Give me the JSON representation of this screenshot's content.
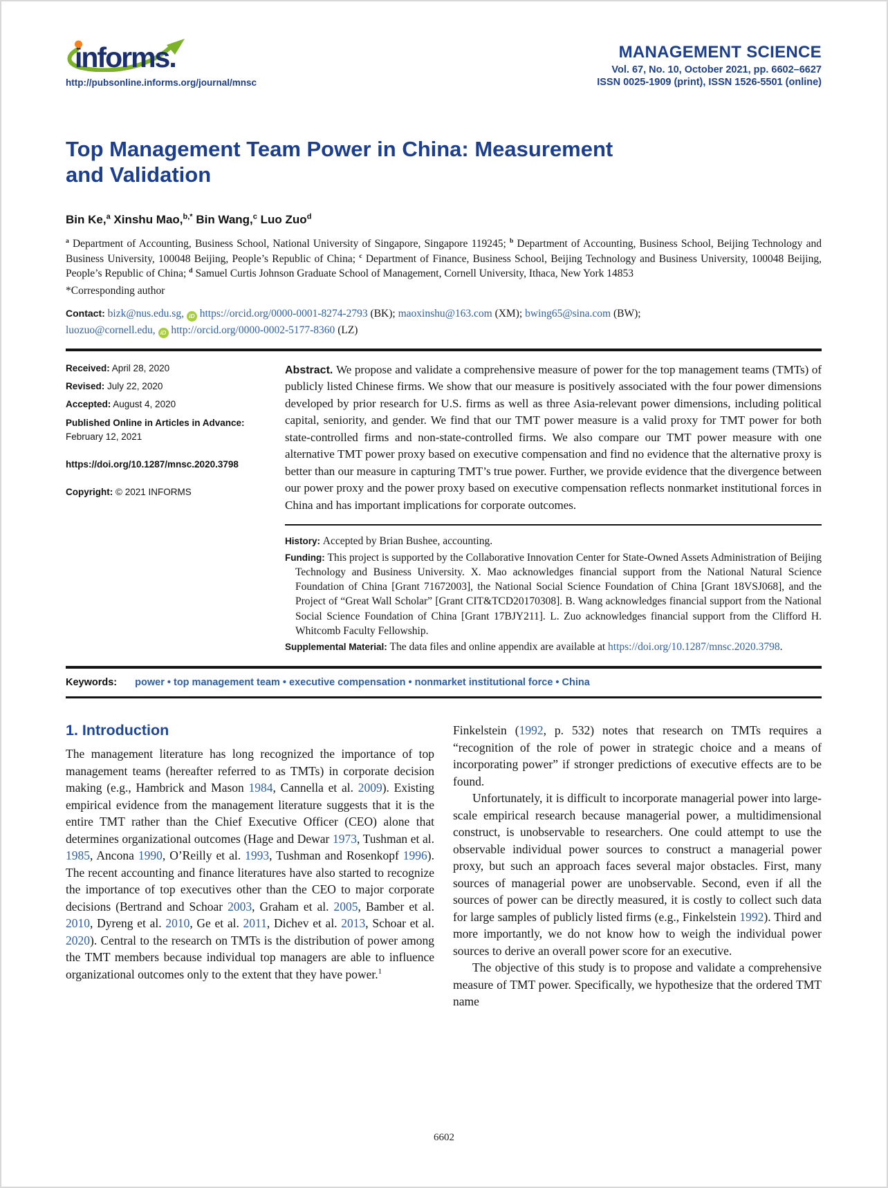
{
  "page": {
    "number": "6602"
  },
  "colors": {
    "navy": "#1c3e8e",
    "link_blue": "#2d5fa8",
    "orcid_green": "#a6ce39",
    "logo_green": "#7cb228",
    "logo_orange": "#f5821f",
    "rule_black": "#141414"
  },
  "header": {
    "logo_text": "informs.",
    "logo_url": "http://pubsonline.informs.org/journal/mnsc",
    "journal": "MANAGEMENT SCIENCE",
    "volume_line": "Vol. 67, No. 10, October 2021, pp. 6602–6627",
    "issn_line": "ISSN 0025-1909 (print), ISSN 1526-5501 (online)"
  },
  "article": {
    "title_line1": "Top Management Team Power in China: Measurement",
    "title_line2": "and Validation",
    "author_segments": [
      {
        "t": "Bin Ke,"
      },
      {
        "t": "a",
        "s": "sup"
      },
      {
        "t": " Xinshu Mao,"
      },
      {
        "t": "b,*",
        "s": "sup"
      },
      {
        "t": " Bin Wang,"
      },
      {
        "t": "c",
        "s": "sup"
      },
      {
        "t": " Luo Zuo"
      },
      {
        "t": "d",
        "s": "sup"
      }
    ],
    "affiliation_segments": [
      {
        "t": "a",
        "s": "sup"
      },
      {
        "t": " Department of Accounting, Business School, National University of Singapore, Singapore 119245; "
      },
      {
        "t": "b",
        "s": "sup"
      },
      {
        "t": " Department of Accounting, Business School, Beijing Technology and Business University, 100048 Beijing, People’s Republic of China; "
      },
      {
        "t": "c",
        "s": "sup"
      },
      {
        "t": " Department of Finance, Business School, Beijing Technology and Business University, 100048 Beijing, People’s Republic of China; "
      },
      {
        "t": "d",
        "s": "sup"
      },
      {
        "t": " Samuel Curtis Johnson Graduate School of Management, Cornell University, Ithaca, New York 14853"
      }
    ],
    "corresponding": "*Corresponding author",
    "contact_segments": [
      {
        "t": "Contact: ",
        "s": "label"
      },
      {
        "t": "bizk@nus.edu.sg,",
        "s": "link",
        "n": "email-link-bk"
      },
      {
        "t": " "
      },
      {
        "t": "iD",
        "s": "orcid"
      },
      {
        "t": " "
      },
      {
        "t": "https://orcid.org/0000-0001-8274-2793",
        "s": "link",
        "n": "orcid-link-bk"
      },
      {
        "t": " (BK); "
      },
      {
        "t": "maoxinshu@163.com",
        "s": "link",
        "n": "email-link-xm"
      },
      {
        "t": " (XM); "
      },
      {
        "t": "bwing65@sina.com",
        "s": "link",
        "n": "email-link-bw"
      },
      {
        "t": " (BW);"
      },
      {
        "t": "",
        "s": "br"
      },
      {
        "t": "luozuo@cornell.edu,",
        "s": "link",
        "n": "email-link-lz"
      },
      {
        "t": " "
      },
      {
        "t": "iD",
        "s": "orcid"
      },
      {
        "t": " "
      },
      {
        "t": "http://orcid.org/0000-0002-5177-8360",
        "s": "link",
        "n": "orcid-link-lz"
      },
      {
        "t": " (LZ)"
      }
    ]
  },
  "meta": {
    "received_label": "Received:",
    "received": " April 28, 2020",
    "revised_label": "Revised:",
    "revised": " July 22, 2020",
    "accepted_label": "Accepted:",
    "accepted": " August 4, 2020",
    "published_label": "Published Online in Articles in Advance:",
    "published": "February 12, 2021",
    "doi": "https://doi.org/10.1287/mnsc.2020.3798",
    "copyright_label": "Copyright:",
    "copyright": " © 2021 INFORMS"
  },
  "abstract": {
    "segments": [
      {
        "t": "Abstract. ",
        "s": "label"
      },
      {
        "t": "We propose and validate a comprehensive measure of power for the top management teams (TMTs) of publicly listed Chinese firms. We show that our measure is positively associated with the four power dimensions developed by prior research for U.S. firms as well as three Asia-relevant power dimensions, including political capital, seniority, and gender. We find that our TMT power measure is a valid proxy for TMT power for both state-controlled firms and non-state-controlled firms. We also compare our TMT power measure with one alternative TMT power proxy based on executive compensation and find no evidence that the alternative proxy is better than our measure in capturing TMT’s true power. Further, we provide evidence that the divergence between our power proxy and the power proxy based on executive compensation reflects nonmarket institutional forces in China and has important implications for corporate outcomes."
      }
    ]
  },
  "notes": {
    "history": [
      {
        "t": "History: ",
        "s": "label"
      },
      {
        "t": "Accepted by Brian Bushee, accounting."
      }
    ],
    "funding": [
      {
        "t": "Funding: ",
        "s": "label"
      },
      {
        "t": "This project is supported by the Collaborative Innovation Center for State-Owned Assets Administration of Beijing Technology and Business University. X. Mao acknowledges financial support from the National Natural Science Foundation of China [Grant 71672003], the National Social Science Foundation of China [Grant 18VSJ068], and the Project of “Great Wall Scholar” [Grant CIT&TCD20170308]. B. Wang acknowledges financial support from the National Social Science Foundation of China [Grant 17BJY211]. L. Zuo acknowledges financial support from the Clifford H. Whitcomb Faculty Fellowship."
      }
    ],
    "supplemental": [
      {
        "t": "Supplemental Material: ",
        "s": "label"
      },
      {
        "t": "The data files and online appendix are available at "
      },
      {
        "t": "https://doi.org/10.1287/mnsc.2020.3798",
        "s": "link",
        "n": "supplemental-doi-link"
      },
      {
        "t": "."
      }
    ]
  },
  "keywords": {
    "label": "Keywords:",
    "items": [
      "power",
      "top management team",
      "executive compensation",
      "nonmarket institutional force",
      "China"
    ],
    "segments": [
      {
        "t": "power",
        "s": "kw"
      },
      {
        "t": "  •  ",
        "s": "kwsep"
      },
      {
        "t": "top management team",
        "s": "kw"
      },
      {
        "t": "  •  ",
        "s": "kwsep"
      },
      {
        "t": "executive compensation",
        "s": "kw"
      },
      {
        "t": "  •  ",
        "s": "kwsep"
      },
      {
        "t": "nonmarket institutional force",
        "s": "kw"
      },
      {
        "t": "  •  ",
        "s": "kwsep"
      },
      {
        "t": "China",
        "s": "kw"
      }
    ]
  },
  "sections": {
    "intro_heading": "1. Introduction",
    "col1_para1": [
      {
        "t": "The management literature has long recognized the importance of top management teams (hereafter referred to as TMTs) in corporate decision making (e.g., Hambrick and Mason "
      },
      {
        "t": "1984",
        "s": "link",
        "n": "citation-link"
      },
      {
        "t": ", Cannella et al. "
      },
      {
        "t": "2009",
        "s": "link",
        "n": "citation-link"
      },
      {
        "t": "). Existing empirical evidence from the management literature suggests that it is the entire TMT rather than the Chief Executive Officer (CEO) alone that determines organizational outcomes (Hage and Dewar "
      },
      {
        "t": "1973",
        "s": "link",
        "n": "citation-link"
      },
      {
        "t": ", Tushman et al. "
      },
      {
        "t": "1985",
        "s": "link",
        "n": "citation-link"
      },
      {
        "t": ", Ancona "
      },
      {
        "t": "1990",
        "s": "link",
        "n": "citation-link"
      },
      {
        "t": ", O’Reilly et al. "
      },
      {
        "t": "1993",
        "s": "link",
        "n": "citation-link"
      },
      {
        "t": ", Tushman and Rosenkopf "
      },
      {
        "t": "1996",
        "s": "link",
        "n": "citation-link"
      },
      {
        "t": "). The recent accounting and finance literatures have also started to recognize the importance of top executives other than the CEO to major corporate decisions (Bertrand and Schoar "
      },
      {
        "t": "2003",
        "s": "link",
        "n": "citation-link"
      },
      {
        "t": ", Graham et al. "
      },
      {
        "t": "2005",
        "s": "link",
        "n": "citation-link"
      },
      {
        "t": ", Bamber et al. "
      },
      {
        "t": "2010",
        "s": "link",
        "n": "citation-link"
      },
      {
        "t": ", Dyreng et al. "
      },
      {
        "t": "2010",
        "s": "link",
        "n": "citation-link"
      },
      {
        "t": ", Ge et al. "
      },
      {
        "t": "2011",
        "s": "link",
        "n": "citation-link"
      },
      {
        "t": ", Dichev et al. "
      },
      {
        "t": "2013",
        "s": "link",
        "n": "citation-link"
      },
      {
        "t": ", Schoar et al. "
      },
      {
        "t": "2020",
        "s": "link",
        "n": "citation-link"
      },
      {
        "t": "). Central to the research on TMTs is the distribution of power among the TMT members because individual top managers are able to influence organizational outcomes only to the extent that they have power."
      },
      {
        "t": "1",
        "s": "sup"
      }
    ],
    "col2_para1": [
      {
        "t": "Finkelstein ("
      },
      {
        "t": "1992",
        "s": "link",
        "n": "citation-link"
      },
      {
        "t": ", p. 532) notes that research on TMTs requires a “recognition of the role of power in strategic choice and a means of incorporating power” if stronger predictions of executive effects are to be found."
      }
    ],
    "col2_para2": [
      {
        "t": "Unfortunately, it is difficult to incorporate managerial power into large-scale empirical research because managerial power, a multidimensional construct, is unobservable to researchers. One could attempt to use the observable individual power sources to construct a managerial power proxy, but such an approach faces several major obstacles. First, many sources of managerial power are unobservable. Second, even if all the sources of power can be directly measured, it is costly to collect such data for large samples of publicly listed firms (e.g., Finkelstein "
      },
      {
        "t": "1992",
        "s": "link",
        "n": "citation-link"
      },
      {
        "t": "). Third and more importantly, we do not know how to weigh the individual power sources to derive an overall power score for an executive."
      }
    ],
    "col2_para3": [
      {
        "t": "The objective of this study is to propose and validate a comprehensive measure of TMT power. Specifically, we hypothesize that the ordered TMT name"
      }
    ]
  }
}
